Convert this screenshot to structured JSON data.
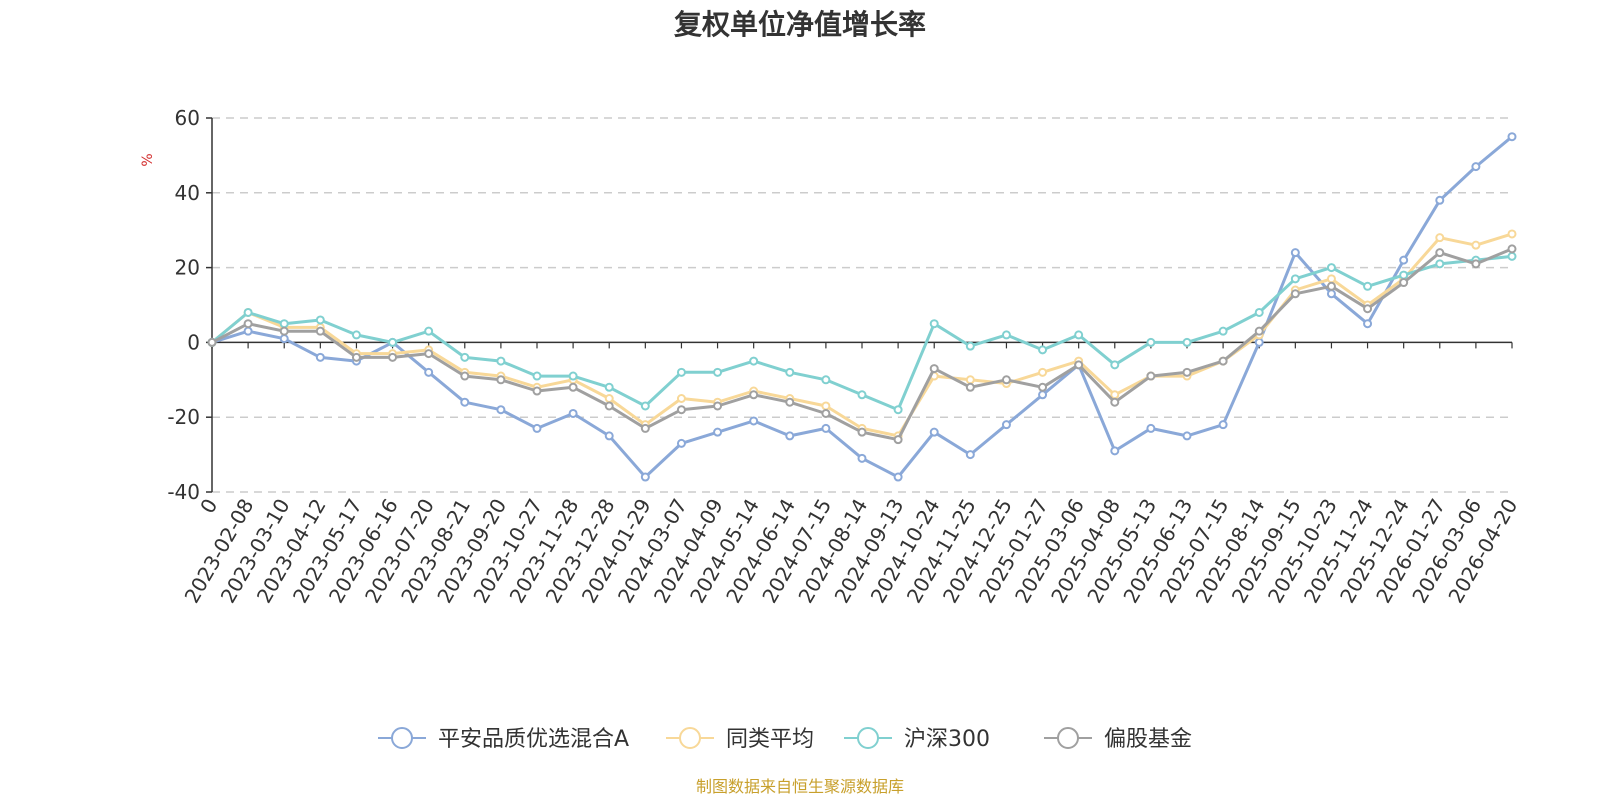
{
  "colors": {
    "text": "#333333",
    "ylabel": "#d32f2f",
    "source": "#c8a02c",
    "grid": "#cccccc",
    "axis": "#333333"
  },
  "chart_data": {
    "type": "line",
    "title": "复权单位净值增长率",
    "ylabel": "%",
    "ylim": [
      -40,
      60
    ],
    "yticks": [
      60,
      40,
      20,
      0,
      -20,
      -40
    ],
    "grid": true,
    "legend_position": "bottom-center",
    "xcategories": [
      "0",
      "2023-02-08",
      "2023-03-10",
      "2023-04-12",
      "2023-05-17",
      "2023-06-16",
      "2023-07-20",
      "2023-08-21",
      "2023-09-20",
      "2023-10-27",
      "2023-11-28",
      "2023-12-28",
      "2024-01-29",
      "2024-03-07",
      "2024-04-09",
      "2024-05-14",
      "2024-06-14",
      "2024-07-15",
      "2024-08-14",
      "2024-09-13",
      "2024-10-24",
      "2024-11-25",
      "2024-12-25",
      "2025-01-27",
      "2025-03-06",
      "2025-04-08",
      "2025-05-13",
      "2025-06-13",
      "2025-07-15",
      "2025-08-14",
      "2025-09-15",
      "2025-10-23",
      "2025-11-24",
      "2025-12-24",
      "2026-01-27",
      "2026-03-06",
      "2026-04-20"
    ],
    "series": [
      {
        "name": "平安品质优选混合A",
        "color": "#8aa8d8",
        "values": [
          0,
          3,
          1,
          -4,
          -5,
          0,
          -8,
          -16,
          -18,
          -23,
          -19,
          -25,
          -36,
          -27,
          -24,
          -21,
          -25,
          -23,
          -31,
          -36,
          -24,
          -30,
          -22,
          -14,
          -6,
          -29,
          -23,
          -25,
          -22,
          0,
          24,
          13,
          5,
          22,
          38,
          47,
          55
        ]
      },
      {
        "name": "同类平均",
        "color": "#f8d898",
        "values": [
          0,
          8,
          4,
          4,
          -3,
          -3,
          -2,
          -8,
          -9,
          -12,
          -10,
          -15,
          -22,
          -15,
          -16,
          -13,
          -15,
          -17,
          -23,
          -25,
          -9,
          -10,
          -11,
          -8,
          -5,
          -14,
          -9,
          -9,
          -5,
          2,
          14,
          17,
          10,
          17,
          28,
          26,
          29
        ]
      },
      {
        "name": "沪深300",
        "color": "#80d0d0",
        "values": [
          0,
          8,
          5,
          6,
          2,
          0,
          3,
          -4,
          -5,
          -9,
          -9,
          -12,
          -17,
          -8,
          -8,
          -5,
          -8,
          -10,
          -14,
          -18,
          5,
          -1,
          2,
          -2,
          2,
          -6,
          0,
          0,
          3,
          8,
          17,
          20,
          15,
          18,
          21,
          22,
          23
        ]
      },
      {
        "name": "偏股基金",
        "color": "#a0a0a0",
        "values": [
          0,
          5,
          3,
          3,
          -4,
          -4,
          -3,
          -9,
          -10,
          -13,
          -12,
          -17,
          -23,
          -18,
          -17,
          -14,
          -16,
          -19,
          -24,
          -26,
          -7,
          -12,
          -10,
          -12,
          -6,
          -16,
          -9,
          -8,
          -5,
          3,
          13,
          15,
          9,
          16,
          24,
          21,
          25
        ]
      }
    ]
  },
  "source_note": "制图数据来自恒生聚源数据库"
}
